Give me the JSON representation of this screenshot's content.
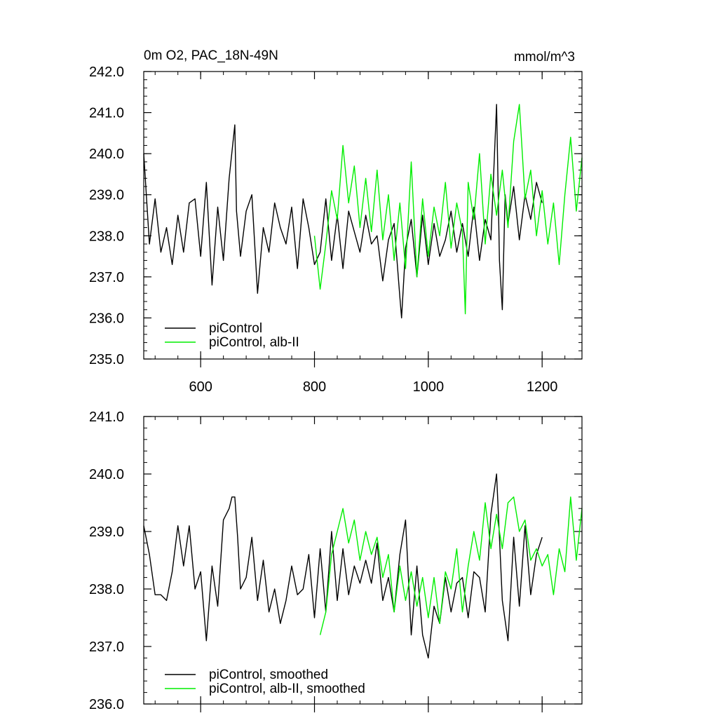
{
  "chart_data": [
    {
      "type": "line",
      "title_left": "0m O2, PAC_18N-49N",
      "title_right": "mmol/m^3",
      "xlim": [
        500,
        1270
      ],
      "ylim": [
        235.0,
        242.0
      ],
      "x_ticks": [
        600,
        800,
        1000,
        1200
      ],
      "x_tick_labels": [
        "600",
        "800",
        "1000",
        "1200"
      ],
      "y_ticks": [
        235,
        236,
        237,
        238,
        239,
        240,
        241,
        242
      ],
      "y_tick_labels": [
        "235.0",
        "236.0",
        "237.0",
        "238.0",
        "239.0",
        "240.0",
        "241.0",
        "242.0"
      ],
      "legend_position": "bottom-left",
      "series": [
        {
          "name": "piControl",
          "color": "#000000",
          "x": [
            500,
            510,
            520,
            530,
            540,
            550,
            560,
            570,
            580,
            590,
            600,
            610,
            620,
            630,
            640,
            650,
            660,
            663,
            670,
            680,
            690,
            700,
            710,
            720,
            730,
            740,
            750,
            760,
            770,
            780,
            790,
            800,
            810,
            820,
            830,
            840,
            850,
            860,
            870,
            880,
            890,
            900,
            910,
            920,
            930,
            940,
            950,
            953,
            960,
            970,
            980,
            990,
            1000,
            1010,
            1020,
            1030,
            1040,
            1050,
            1060,
            1070,
            1080,
            1090,
            1100,
            1110,
            1120,
            1125,
            1130,
            1135,
            1140,
            1150,
            1160,
            1170,
            1180,
            1190,
            1200
          ],
          "values": [
            240.0,
            237.8,
            238.9,
            237.6,
            238.2,
            237.3,
            238.5,
            237.6,
            238.8,
            238.9,
            237.5,
            239.3,
            236.8,
            238.7,
            237.4,
            239.4,
            240.7,
            238.6,
            237.5,
            238.6,
            239.0,
            236.6,
            238.2,
            237.6,
            238.8,
            238.2,
            237.8,
            238.7,
            237.2,
            238.9,
            238.2,
            237.3,
            237.6,
            238.9,
            237.4,
            238.5,
            237.2,
            238.6,
            238.1,
            237.6,
            238.5,
            237.8,
            238.0,
            236.9,
            237.9,
            238.3,
            236.5,
            236.0,
            237.7,
            238.4,
            237.0,
            238.5,
            237.3,
            238.3,
            237.5,
            237.9,
            238.6,
            237.6,
            238.3,
            237.5,
            238.7,
            237.4,
            238.4,
            237.9,
            241.2,
            237.4,
            236.2,
            239.0,
            238.3,
            239.2,
            237.9,
            239.0,
            238.4,
            239.3,
            238.8
          ]
        },
        {
          "name": "piControl, alb-II",
          "color": "#00ee00",
          "x": [
            800,
            810,
            820,
            830,
            840,
            850,
            860,
            870,
            880,
            890,
            900,
            910,
            920,
            930,
            940,
            950,
            960,
            970,
            980,
            990,
            1000,
            1010,
            1020,
            1030,
            1040,
            1050,
            1060,
            1065,
            1070,
            1080,
            1090,
            1100,
            1110,
            1120,
            1130,
            1140,
            1150,
            1160,
            1170,
            1180,
            1190,
            1200,
            1210,
            1220,
            1230,
            1240,
            1250,
            1260,
            1270
          ],
          "values": [
            238.0,
            236.7,
            237.8,
            239.1,
            238.4,
            240.2,
            238.8,
            239.7,
            238.2,
            239.4,
            238.1,
            239.6,
            237.9,
            239.0,
            237.4,
            238.8,
            237.2,
            239.8,
            237.0,
            238.9,
            237.5,
            238.7,
            238.0,
            239.3,
            237.7,
            238.8,
            238.1,
            236.1,
            239.3,
            238.4,
            240.0,
            237.8,
            239.5,
            238.5,
            239.6,
            238.2,
            240.3,
            241.2,
            238.9,
            239.6,
            238.0,
            239.1,
            237.8,
            238.8,
            237.3,
            239.0,
            240.4,
            238.6,
            239.9
          ]
        }
      ]
    },
    {
      "type": "line",
      "xlim": [
        500,
        1270
      ],
      "ylim": [
        236.0,
        241.0
      ],
      "x_ticks": [
        600,
        800,
        1000,
        1200
      ],
      "y_ticks": [
        236,
        237,
        238,
        239,
        240,
        241
      ],
      "y_tick_labels": [
        "236.0",
        "237.0",
        "238.0",
        "239.0",
        "240.0",
        "241.0"
      ],
      "legend_position": "bottom-left",
      "series": [
        {
          "name": "piControl, smoothed",
          "color": "#000000",
          "x": [
            500,
            510,
            520,
            530,
            540,
            550,
            560,
            570,
            580,
            590,
            600,
            610,
            620,
            630,
            640,
            650,
            655,
            660,
            665,
            670,
            680,
            690,
            700,
            710,
            720,
            730,
            740,
            750,
            760,
            770,
            780,
            790,
            800,
            810,
            820,
            830,
            840,
            850,
            860,
            870,
            880,
            890,
            900,
            910,
            920,
            930,
            940,
            950,
            960,
            970,
            980,
            990,
            1000,
            1010,
            1020,
            1030,
            1040,
            1050,
            1060,
            1070,
            1080,
            1090,
            1100,
            1110,
            1120,
            1130,
            1140,
            1150,
            1160,
            1170,
            1180,
            1190,
            1200
          ],
          "values": [
            239.1,
            238.6,
            237.9,
            237.9,
            237.8,
            238.3,
            239.1,
            238.4,
            239.1,
            238.0,
            238.3,
            237.1,
            238.4,
            237.7,
            239.2,
            239.4,
            239.6,
            239.6,
            238.9,
            238.0,
            238.2,
            238.9,
            237.8,
            238.5,
            237.6,
            238.0,
            237.4,
            237.8,
            238.4,
            237.9,
            238.0,
            238.6,
            237.5,
            238.7,
            237.6,
            239.0,
            237.8,
            238.7,
            237.9,
            238.4,
            238.1,
            238.5,
            238.1,
            238.8,
            237.8,
            238.2,
            237.6,
            238.6,
            239.2,
            237.2,
            238.4,
            237.2,
            236.8,
            237.7,
            237.4,
            238.2,
            237.6,
            238.1,
            238.2,
            237.5,
            238.3,
            238.2,
            237.6,
            239.3,
            240.0,
            237.8,
            237.1,
            238.9,
            237.7,
            239.1,
            237.9,
            238.6,
            238.9
          ]
        },
        {
          "name": "piControl, alb-II, smoothed",
          "color": "#00ee00",
          "x": [
            810,
            820,
            830,
            840,
            850,
            860,
            870,
            880,
            890,
            900,
            910,
            920,
            930,
            940,
            950,
            960,
            970,
            980,
            990,
            1000,
            1010,
            1020,
            1030,
            1040,
            1050,
            1060,
            1070,
            1080,
            1090,
            1100,
            1110,
            1120,
            1130,
            1140,
            1150,
            1160,
            1170,
            1180,
            1190,
            1200,
            1210,
            1220,
            1230,
            1240,
            1250,
            1260,
            1270
          ],
          "values": [
            237.2,
            237.6,
            238.6,
            239.0,
            239.4,
            238.8,
            239.2,
            238.5,
            239.0,
            238.6,
            238.9,
            238.2,
            238.6,
            237.6,
            238.4,
            237.8,
            238.3,
            237.7,
            238.2,
            237.5,
            238.2,
            237.4,
            238.3,
            238.0,
            238.7,
            237.6,
            238.4,
            239.0,
            238.5,
            239.5,
            238.7,
            239.3,
            238.7,
            239.5,
            239.6,
            239.0,
            239.2,
            238.5,
            238.7,
            238.4,
            238.6,
            237.9,
            238.7,
            238.3,
            239.6,
            238.5,
            239.4
          ]
        }
      ]
    }
  ]
}
